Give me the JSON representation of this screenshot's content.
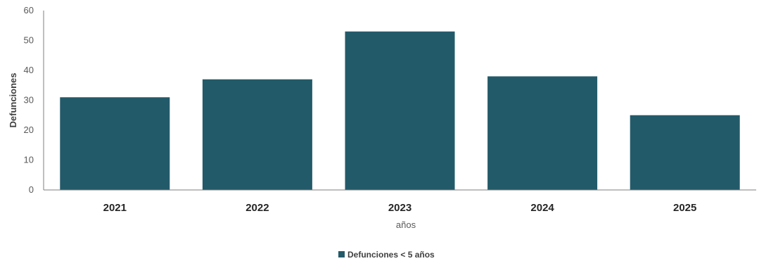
{
  "chart_data": {
    "type": "bar",
    "categories": [
      "2021",
      "2022",
      "2023",
      "2024",
      "2025"
    ],
    "series": [
      {
        "name": "Defunciones < 5 años",
        "values": [
          31,
          37,
          53,
          38,
          25
        ]
      }
    ],
    "title": "",
    "xlabel": "años",
    "ylabel": "Defunciones",
    "ylim": [
      0,
      60
    ],
    "yticks": [
      0,
      10,
      20,
      30,
      40,
      50,
      60
    ],
    "grid": false,
    "legend_position": "bottom",
    "colors": {
      "bar": "#235A69"
    }
  }
}
